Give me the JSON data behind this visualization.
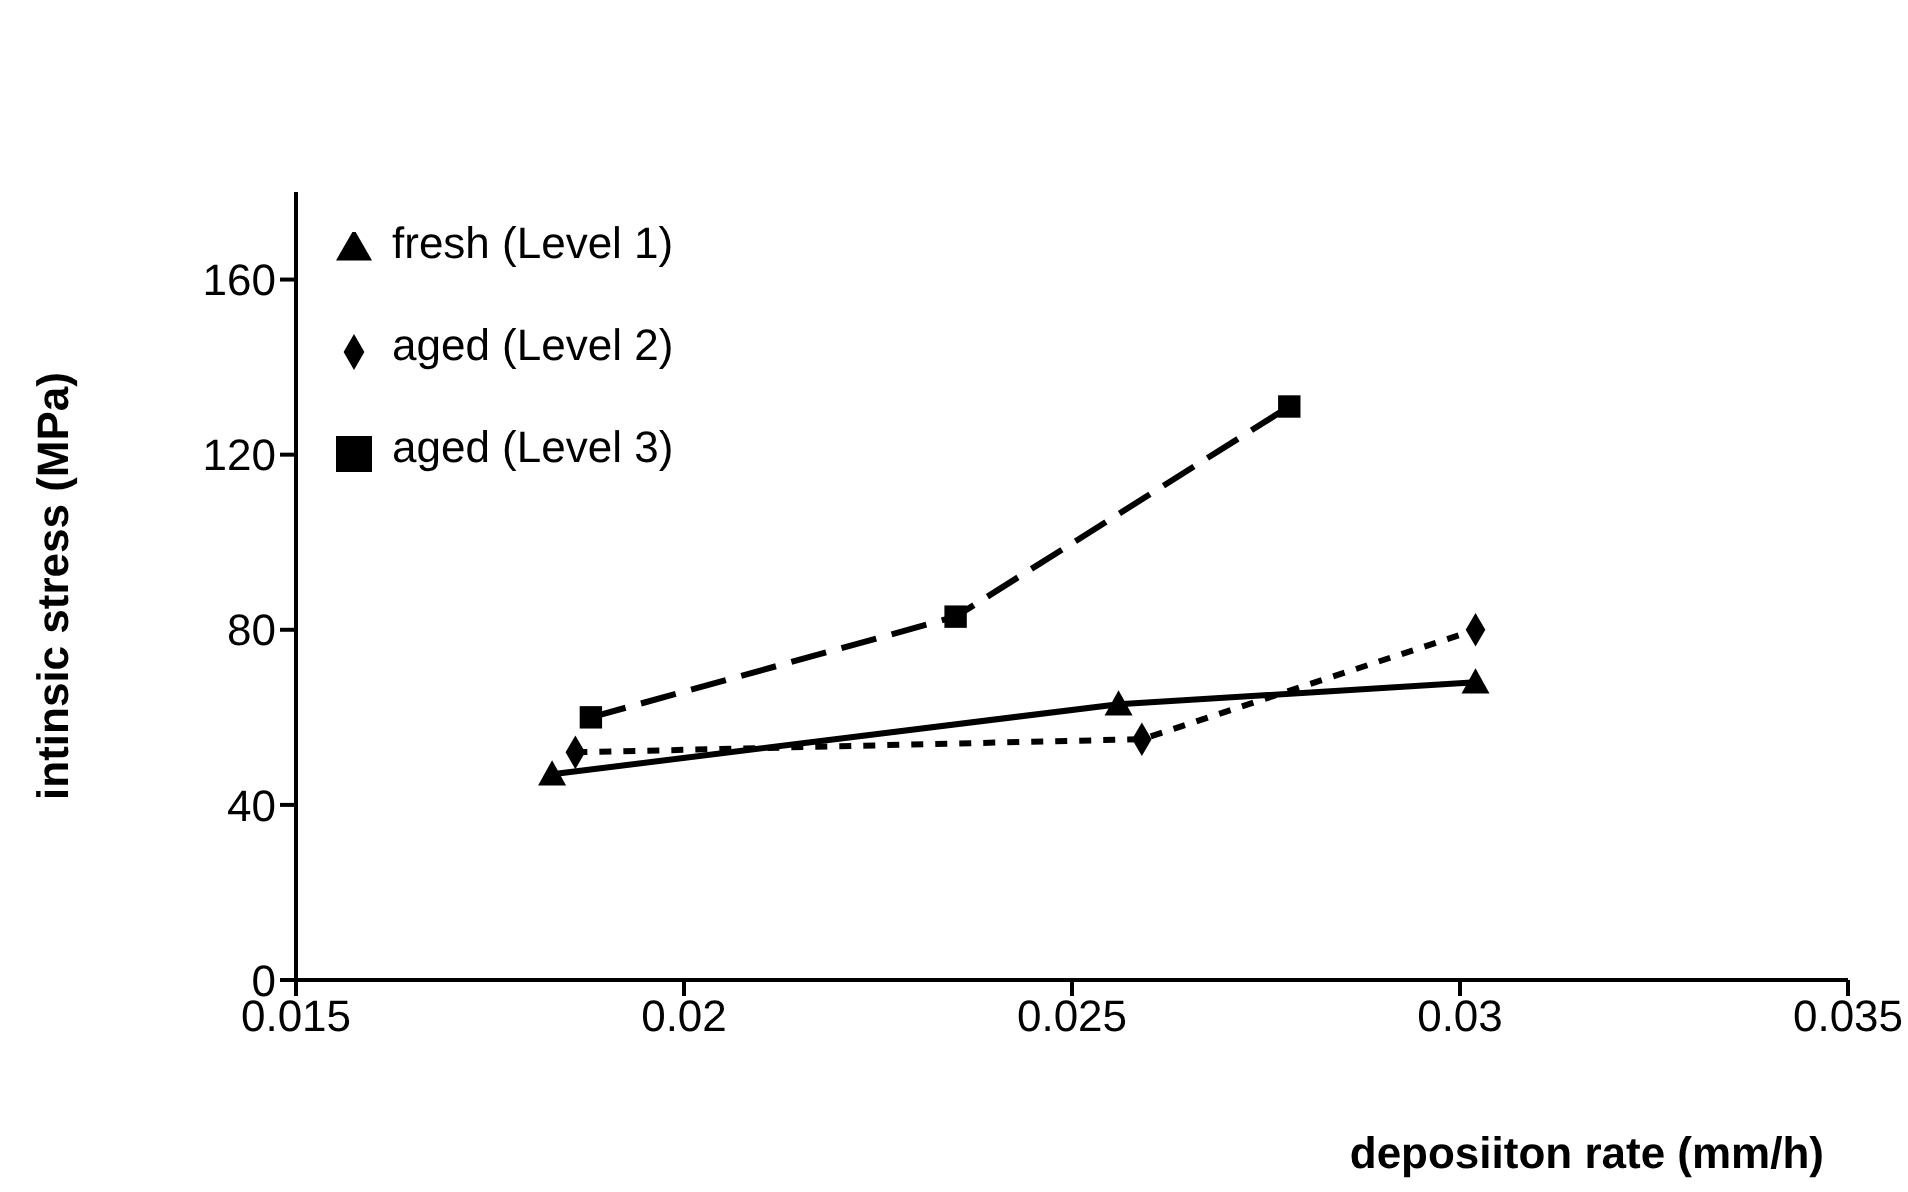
{
  "chart_data": {
    "type": "line",
    "xlabel": "deposiiton rate (mm/h)",
    "ylabel": "intinsic stress (MPa)",
    "xlim": [
      0.015,
      0.035
    ],
    "xticks": [
      0.015,
      0.02,
      0.025,
      0.03,
      0.035
    ],
    "ylim": [
      0,
      180
    ],
    "yticks": [
      0,
      40,
      80,
      120,
      160
    ],
    "grid": false,
    "legend": "top left",
    "series": [
      {
        "name": "fresh (Level 1)",
        "color": "#000000",
        "marker": "triangle",
        "line_style": "solid",
        "x": [
          0.0183,
          0.0256,
          0.0302
        ],
        "values": [
          47,
          63,
          68
        ]
      },
      {
        "name": "aged (Level 2)",
        "color": "#000000",
        "marker": "diamond",
        "line_style": "dotted",
        "x": [
          0.0186,
          0.0259,
          0.0302
        ],
        "values": [
          52,
          55,
          80
        ]
      },
      {
        "name": "aged (Level 3)",
        "color": "#000000",
        "marker": "square",
        "line_style": "dashed",
        "x": [
          0.0188,
          0.0235,
          0.0278
        ],
        "values": [
          60,
          83,
          131
        ]
      }
    ]
  }
}
